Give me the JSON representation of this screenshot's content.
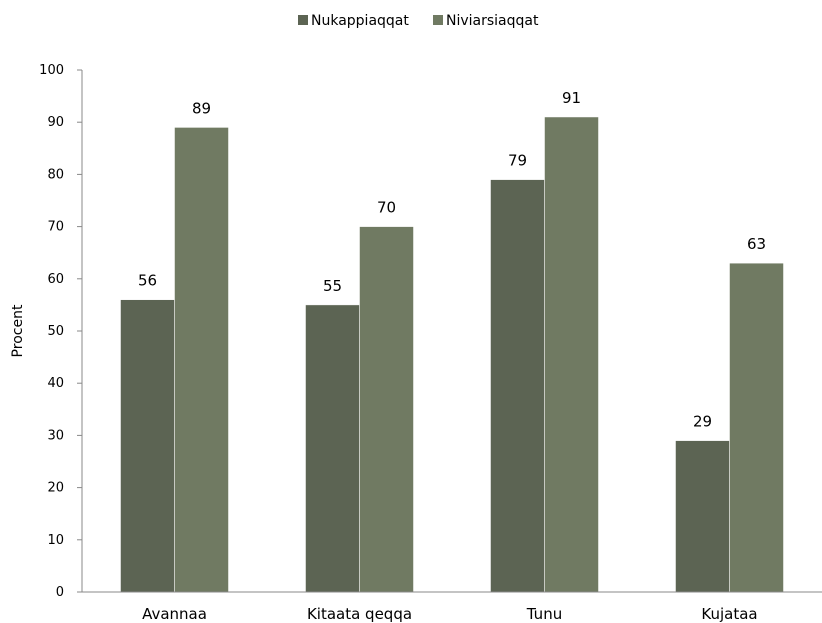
{
  "chart_data": {
    "type": "bar",
    "categories": [
      "Avannaa",
      "Kitaata qeqqa",
      "Tunu",
      "Kujataa"
    ],
    "series": [
      {
        "name": "Nukappiaqqat",
        "values": [
          56,
          55,
          79,
          29
        ],
        "color": "#5c6453"
      },
      {
        "name": "Niviarsiaqqat",
        "values": [
          89,
          70,
          91,
          63
        ],
        "color": "#707a62"
      }
    ],
    "data_labels": [
      [
        "56",
        "55",
        "79",
        "29"
      ],
      [
        "89",
        "70",
        "91",
        "63"
      ]
    ],
    "xlabel": "",
    "ylabel": "Procent",
    "ylim": [
      0,
      100
    ],
    "yticks": [
      "0",
      "10",
      "20",
      "30",
      "40",
      "50",
      "60",
      "70",
      "80",
      "90",
      "100"
    ],
    "legend_position": "top-center",
    "grid": false
  }
}
